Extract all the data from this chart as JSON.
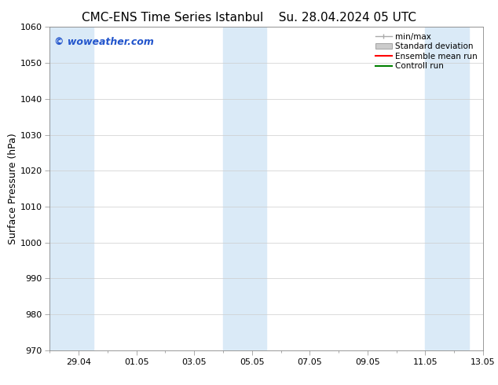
{
  "title_left": "CMC-ENS Time Series Istanbul",
  "title_right": "Su. 28.04.2024 05 UTC",
  "ylabel": "Surface Pressure (hPa)",
  "ylim": [
    970,
    1060
  ],
  "yticks": [
    970,
    980,
    990,
    1000,
    1010,
    1020,
    1030,
    1040,
    1050,
    1060
  ],
  "x_start": 0,
  "x_end": 15,
  "xtick_positions": [
    1,
    3,
    5,
    7,
    9,
    11,
    13,
    15
  ],
  "xtick_labels": [
    "29.04",
    "01.05",
    "03.05",
    "05.05",
    "07.05",
    "09.05",
    "11.05",
    "13.05"
  ],
  "bg_color": "#ffffff",
  "plot_bg_color": "#ffffff",
  "shaded_bands": [
    {
      "xmin": 0,
      "xmax": 1.5
    },
    {
      "xmin": 6,
      "xmax": 7.5
    },
    {
      "xmin": 13,
      "xmax": 14.5
    }
  ],
  "band_color": "#daeaf7",
  "watermark": "© woweather.com",
  "watermark_color": "#2255cc",
  "legend_items": [
    {
      "label": "min/max",
      "color": "#aaaaaa",
      "type": "errorbar"
    },
    {
      "label": "Standard deviation",
      "color": "#cccccc",
      "type": "bar"
    },
    {
      "label": "Ensemble mean run",
      "color": "#ff0000",
      "type": "line"
    },
    {
      "label": "Controll run",
      "color": "#008000",
      "type": "line"
    }
  ],
  "grid_color": "#cccccc",
  "title_fontsize": 11,
  "tick_fontsize": 8,
  "ylabel_fontsize": 9,
  "legend_fontsize": 7.5,
  "watermark_fontsize": 9
}
